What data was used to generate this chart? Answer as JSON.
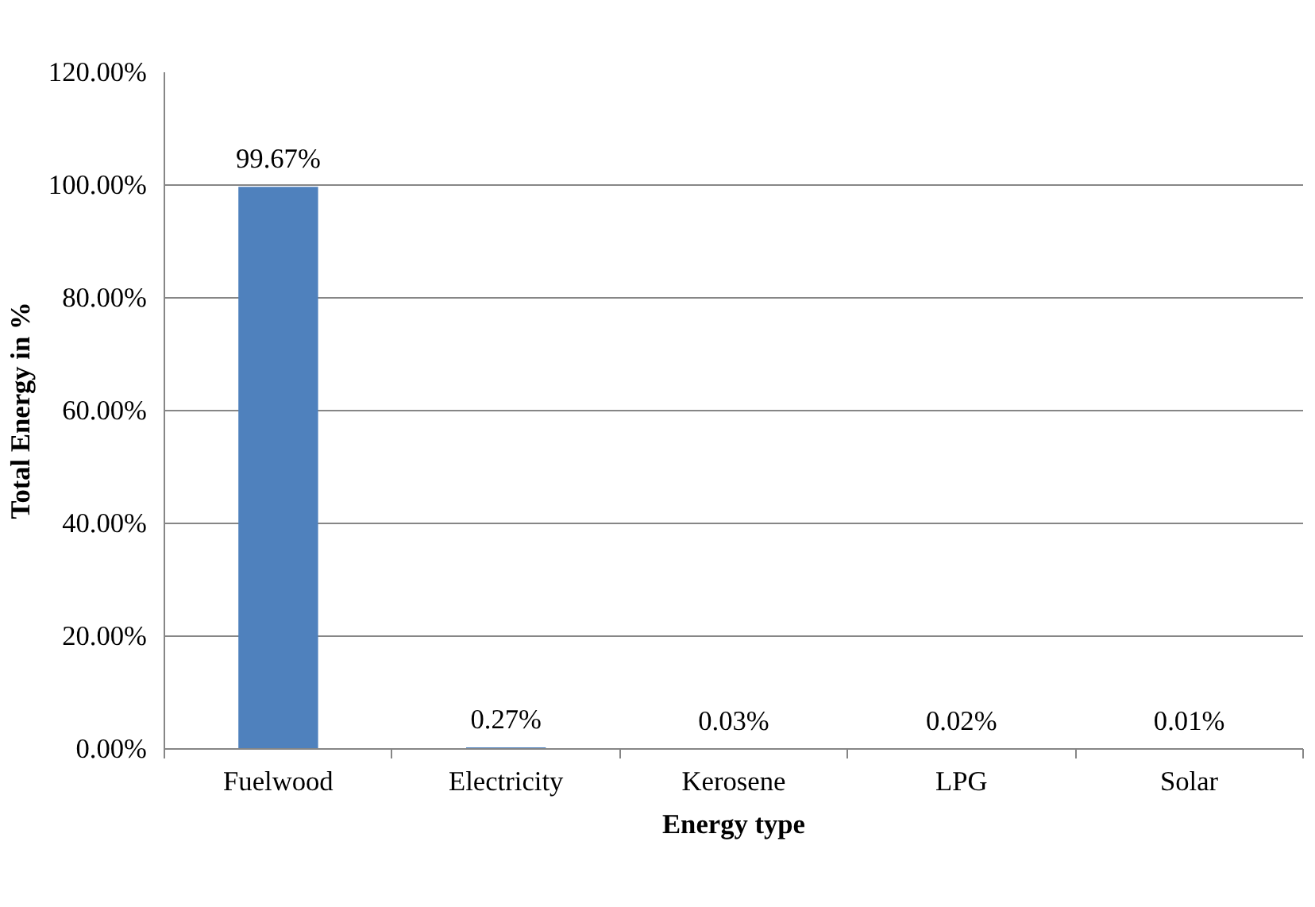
{
  "chart_data": {
    "type": "bar",
    "xlabel": "Energy type",
    "ylabel": "Total Energy in %",
    "categories": [
      "Fuelwood",
      "Electricity",
      "Kerosene",
      "LPG",
      "Solar"
    ],
    "values": [
      99.67,
      0.27,
      0.03,
      0.02,
      0.01
    ],
    "value_labels": [
      "99.67%",
      "0.27%",
      "0.03%",
      "0.02%",
      "0.01%"
    ],
    "color": "#4f81bd",
    "ylim": [
      0,
      120
    ],
    "yticks": [
      {
        "value": 0,
        "label": "0.00%"
      },
      {
        "value": 20,
        "label": "20.00%"
      },
      {
        "value": 40,
        "label": "40.00%"
      },
      {
        "value": 60,
        "label": "60.00%"
      },
      {
        "value": 80,
        "label": "80.00%"
      },
      {
        "value": 100,
        "label": "100.00%"
      },
      {
        "value": 120,
        "label": "120.00%"
      }
    ],
    "grid": "y"
  }
}
